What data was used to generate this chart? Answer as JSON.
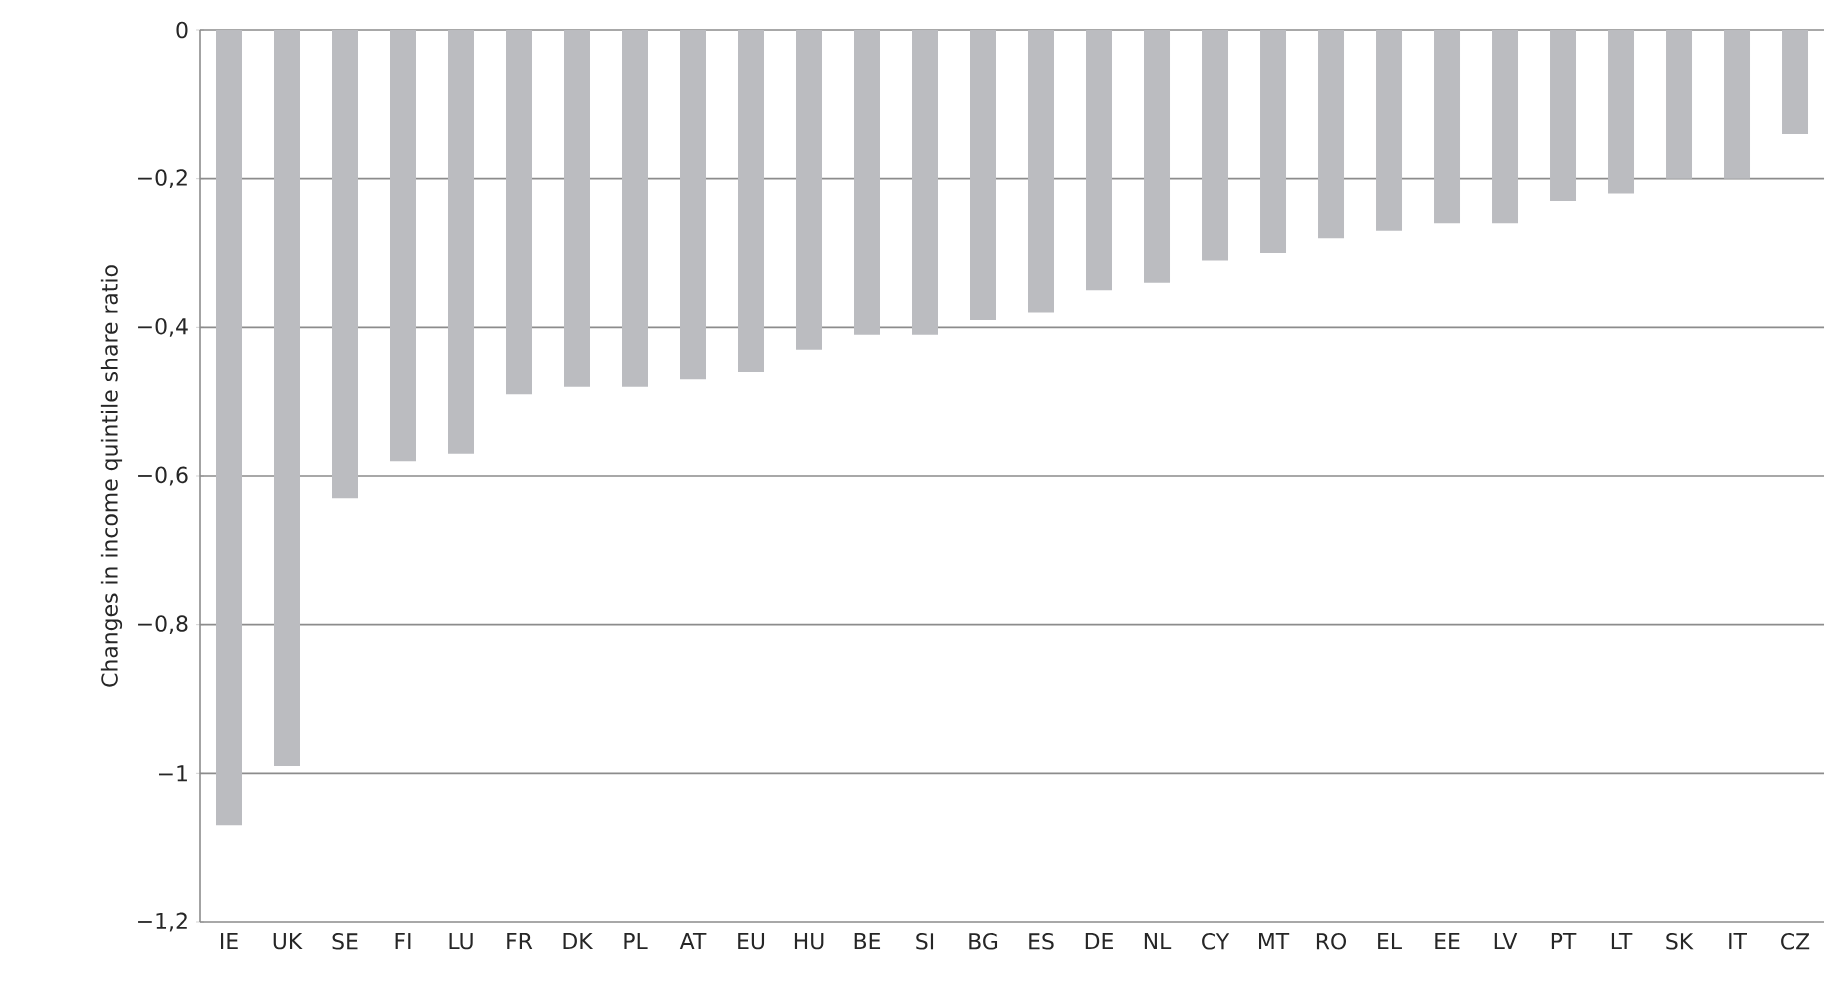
{
  "chart_data": {
    "type": "bar",
    "ylabel": "Changes in income quintile share ratio",
    "categories": [
      "IE",
      "UK",
      "SE",
      "FI",
      "LU",
      "FR",
      "DK",
      "PL",
      "AT",
      "EU",
      "HU",
      "BE",
      "SI",
      "BG",
      "ES",
      "DE",
      "NL",
      "CY",
      "MT",
      "RO",
      "EL",
      "EE",
      "LV",
      "PT",
      "LT",
      "SK",
      "IT",
      "CZ"
    ],
    "values": [
      -1.07,
      -0.99,
      -0.63,
      -0.58,
      -0.57,
      -0.49,
      -0.48,
      -0.48,
      -0.47,
      -0.46,
      -0.43,
      -0.41,
      -0.41,
      -0.39,
      -0.38,
      -0.35,
      -0.34,
      -0.31,
      -0.3,
      -0.28,
      -0.27,
      -0.26,
      -0.26,
      -0.23,
      -0.22,
      -0.2,
      -0.2,
      -0.14
    ],
    "color": "#bbbcc0",
    "ylim": [
      -1.2,
      0
    ],
    "yticks": [
      0,
      {
        "value": -0.2,
        "label": "−0,2"
      },
      {
        "value": -0.4,
        "label": "−0,4"
      },
      {
        "value": -0.6,
        "label": "−0,6"
      },
      {
        "value": -0.8,
        "label": "−0,8"
      },
      {
        "value": -1,
        "label": "−1"
      },
      {
        "value": -1.2,
        "label": "−1,2"
      }
    ],
    "grid": "y"
  }
}
